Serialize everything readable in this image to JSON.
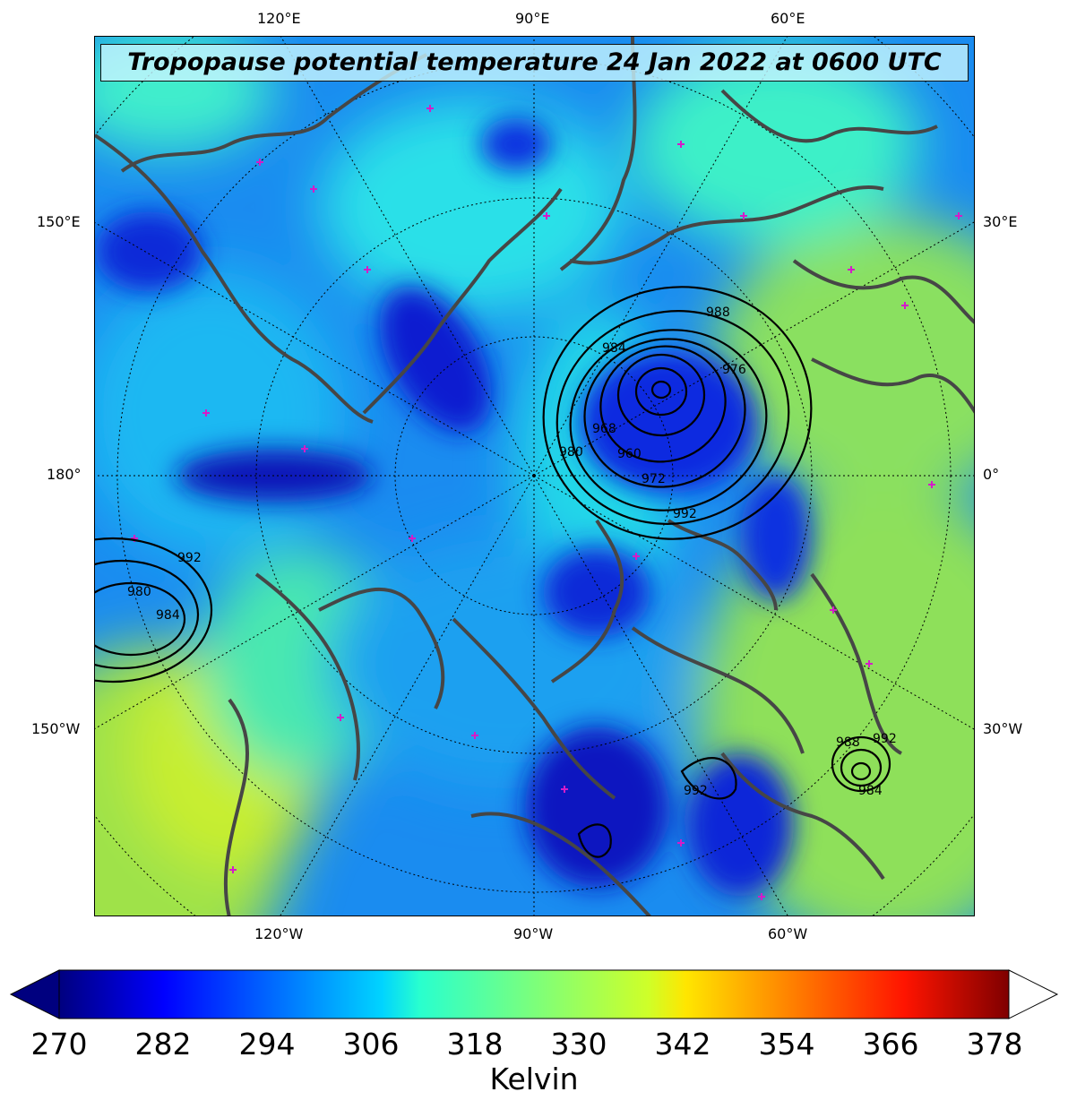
{
  "map": {
    "title": "Tropopause potential temperature 24 Jan 2022 at 0600 UTC",
    "top_ticks": [
      "120°E",
      "90°E",
      "60°E"
    ],
    "bottom_ticks": [
      "120°W",
      "90°W",
      "60°W"
    ],
    "left_ticks": [
      "150°E",
      "180°",
      "150°W"
    ],
    "right_ticks": [
      "30°E",
      "0°",
      "30°W"
    ],
    "pressure_contour_labels": [
      "988",
      "984",
      "976",
      "968",
      "960",
      "980",
      "972",
      "992",
      "980",
      "984",
      "992",
      "988",
      "984",
      "992",
      "992"
    ],
    "colors": {
      "background": "#1a8cf0",
      "coastline": "#464646",
      "marker": "#d41cc8",
      "contour": "#000000"
    }
  },
  "colorbar": {
    "ticks": [
      "270",
      "282",
      "294",
      "306",
      "318",
      "330",
      "342",
      "354",
      "366",
      "378"
    ],
    "label": "Kelvin",
    "colormap": "jet",
    "extend": "both"
  }
}
